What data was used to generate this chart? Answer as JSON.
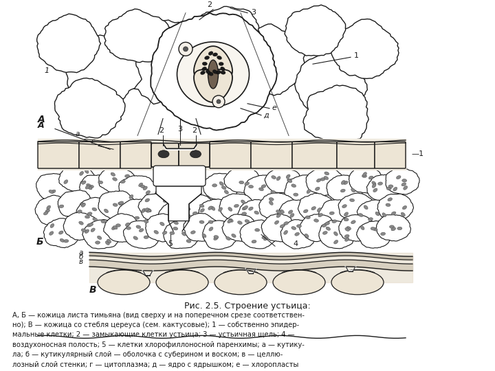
{
  "title": "Рис. 2.5. Строение устьица:",
  "caption_line1": "А, Б — кожица листа тимьяна (вид сверху и на поперечном срезе соответствен-",
  "caption_line2": "но); В — кожица со стебля цереуса (сем. кактусовые); 1 — собственно эпидер-",
  "caption_line3": "мальные клетки; 2 — замыкающие клетки устьица; 3 — устьичная щель; 4 —",
  "caption_line4": "воздухоносная полость; 5 — клетки хлорофиллоносной паренхимы; а — кутику-",
  "caption_line5": "ла; б — кутикулярный слой — оболочка с суберином и воском; в — целлю-",
  "caption_line6": "лозный слой стенки; г — цитоплазма; д — ядро с ядрышком; е — хлоропласты",
  "bg_color": "#ffffff",
  "line_color": "#1a1a1a",
  "cell_fill": "#f0ece4",
  "guard_fill": "#e8e0d4",
  "white": "#ffffff"
}
